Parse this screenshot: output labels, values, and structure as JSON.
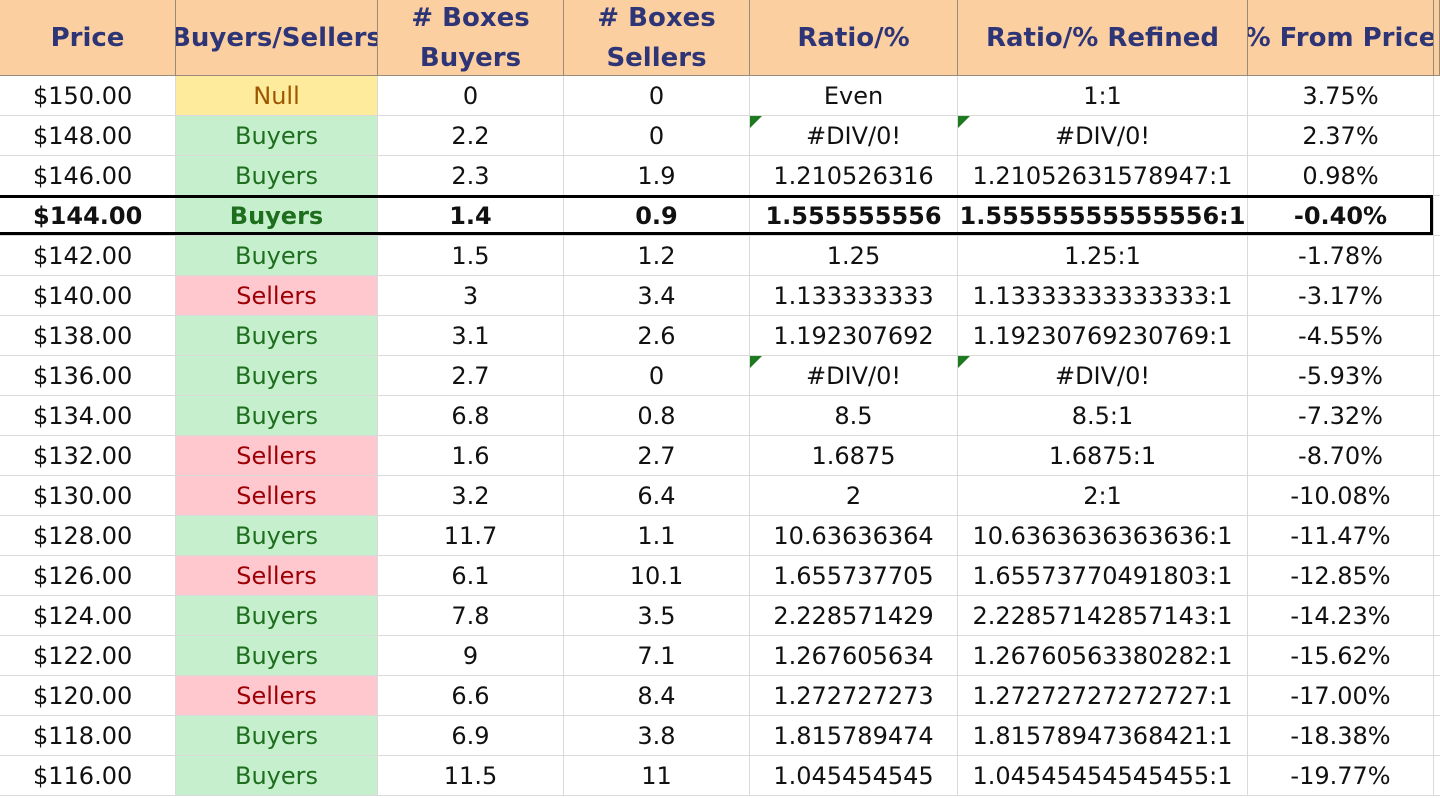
{
  "headers": {
    "price": "Price",
    "side": "Buyers/Sellers",
    "boxes_buyers": [
      "# Boxes",
      "Buyers"
    ],
    "boxes_sellers": [
      "# Boxes",
      "Sellers"
    ],
    "ratio": "Ratio/%",
    "ratio_refined": "Ratio/% Refined",
    "from_price": "% From Price"
  },
  "highlighted_price": "$144.00",
  "colors": {
    "header_fill": "#fccfa0",
    "header_text": "#2e3577",
    "buyers_fill": "#c6efce",
    "buyers_text": "#1d6e1d",
    "sellers_fill": "#ffc7ce",
    "sellers_text": "#9c0006",
    "null_fill": "#ffeb9c",
    "null_text": "#9c5700"
  },
  "rows": [
    {
      "price": "$150.00",
      "side": "Null",
      "buyers": "0",
      "sellers": "0",
      "ratio": "Even",
      "refined": "1:1",
      "pct": "3.75%"
    },
    {
      "price": "$148.00",
      "side": "Buyers",
      "buyers": "2.2",
      "sellers": "0",
      "ratio": "#DIV/0!",
      "refined": "#DIV/0!",
      "pct": "2.37%",
      "flag": true
    },
    {
      "price": "$146.00",
      "side": "Buyers",
      "buyers": "2.3",
      "sellers": "1.9",
      "ratio": "1.210526316",
      "refined": "1.21052631578947:1",
      "pct": "0.98%"
    },
    {
      "price": "$144.00",
      "side": "Buyers",
      "buyers": "1.4",
      "sellers": "0.9",
      "ratio": "1.555555556",
      "refined": "1.55555555555556:1",
      "pct": "-0.40%",
      "highlight": true
    },
    {
      "price": "$142.00",
      "side": "Buyers",
      "buyers": "1.5",
      "sellers": "1.2",
      "ratio": "1.25",
      "refined": "1.25:1",
      "pct": "-1.78%"
    },
    {
      "price": "$140.00",
      "side": "Sellers",
      "buyers": "3",
      "sellers": "3.4",
      "ratio": "1.133333333",
      "refined": "1.13333333333333:1",
      "pct": "-3.17%"
    },
    {
      "price": "$138.00",
      "side": "Buyers",
      "buyers": "3.1",
      "sellers": "2.6",
      "ratio": "1.192307692",
      "refined": "1.19230769230769:1",
      "pct": "-4.55%"
    },
    {
      "price": "$136.00",
      "side": "Buyers",
      "buyers": "2.7",
      "sellers": "0",
      "ratio": "#DIV/0!",
      "refined": "#DIV/0!",
      "pct": "-5.93%",
      "flag": true
    },
    {
      "price": "$134.00",
      "side": "Buyers",
      "buyers": "6.8",
      "sellers": "0.8",
      "ratio": "8.5",
      "refined": "8.5:1",
      "pct": "-7.32%"
    },
    {
      "price": "$132.00",
      "side": "Sellers",
      "buyers": "1.6",
      "sellers": "2.7",
      "ratio": "1.6875",
      "refined": "1.6875:1",
      "pct": "-8.70%"
    },
    {
      "price": "$130.00",
      "side": "Sellers",
      "buyers": "3.2",
      "sellers": "6.4",
      "ratio": "2",
      "refined": "2:1",
      "pct": "-10.08%"
    },
    {
      "price": "$128.00",
      "side": "Buyers",
      "buyers": "11.7",
      "sellers": "1.1",
      "ratio": "10.63636364",
      "refined": "10.6363636363636:1",
      "pct": "-11.47%"
    },
    {
      "price": "$126.00",
      "side": "Sellers",
      "buyers": "6.1",
      "sellers": "10.1",
      "ratio": "1.655737705",
      "refined": "1.65573770491803:1",
      "pct": "-12.85%"
    },
    {
      "price": "$124.00",
      "side": "Buyers",
      "buyers": "7.8",
      "sellers": "3.5",
      "ratio": "2.228571429",
      "refined": "2.22857142857143:1",
      "pct": "-14.23%"
    },
    {
      "price": "$122.00",
      "side": "Buyers",
      "buyers": "9",
      "sellers": "7.1",
      "ratio": "1.267605634",
      "refined": "1.26760563380282:1",
      "pct": "-15.62%"
    },
    {
      "price": "$120.00",
      "side": "Sellers",
      "buyers": "6.6",
      "sellers": "8.4",
      "ratio": "1.272727273",
      "refined": "1.27272727272727:1",
      "pct": "-17.00%"
    },
    {
      "price": "$118.00",
      "side": "Buyers",
      "buyers": "6.9",
      "sellers": "3.8",
      "ratio": "1.815789474",
      "refined": "1.81578947368421:1",
      "pct": "-18.38%"
    },
    {
      "price": "$116.00",
      "side": "Buyers",
      "buyers": "11.5",
      "sellers": "11",
      "ratio": "1.045454545",
      "refined": "1.04545454545455:1",
      "pct": "-19.77%"
    }
  ]
}
